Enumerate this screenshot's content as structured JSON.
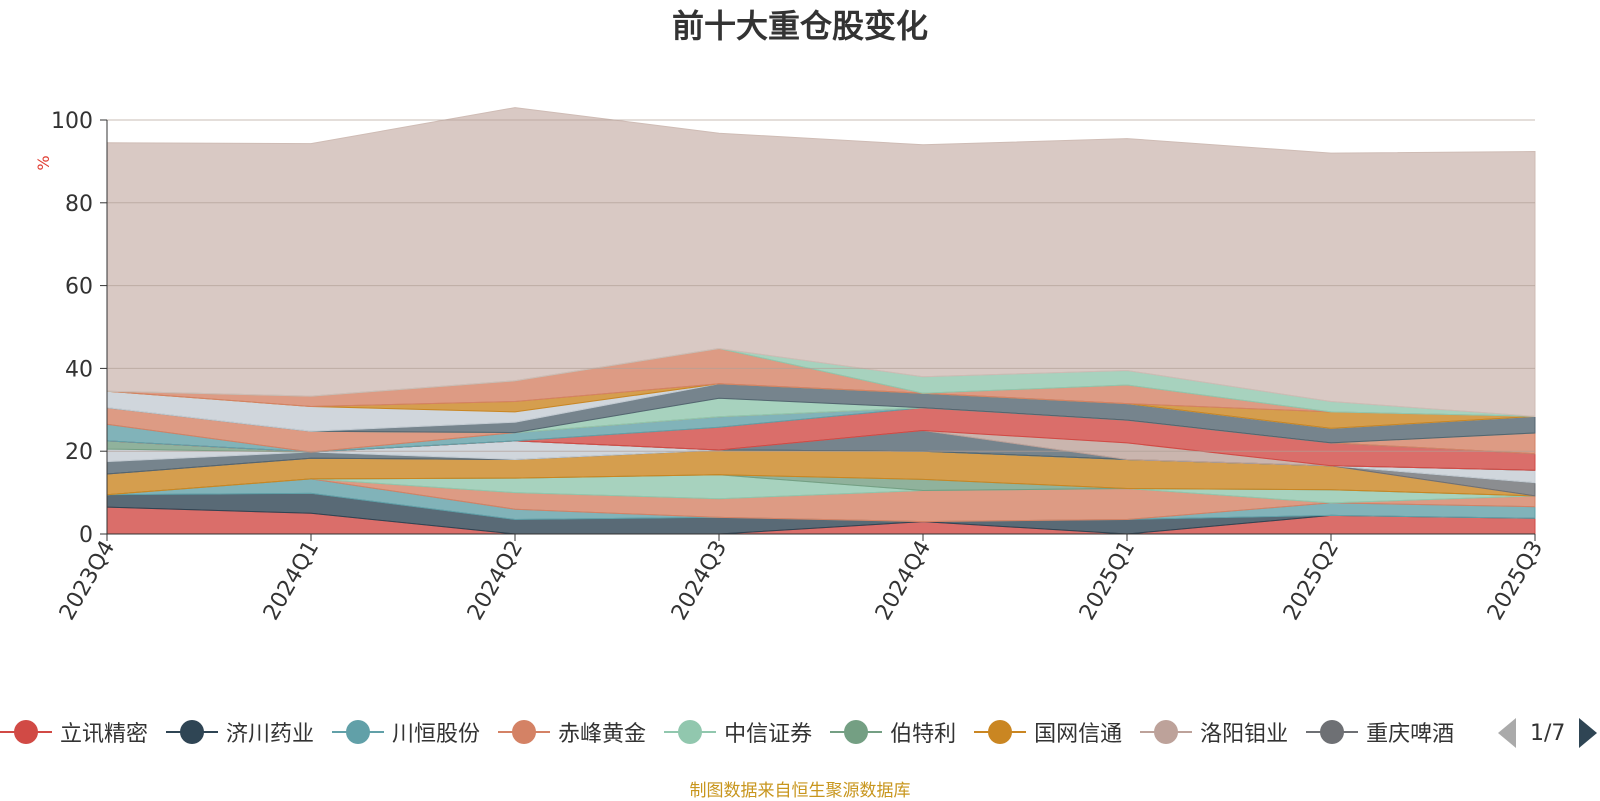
{
  "chart_data": {
    "type": "area",
    "title": "前十大重仓股变化",
    "ylabel": "%",
    "ylim": [
      0,
      100
    ],
    "yticks": [
      0,
      20,
      40,
      60,
      80,
      100
    ],
    "grid": true,
    "stacked": true,
    "legend_position": "bottom",
    "categories": [
      "2023Q4",
      "2024Q1",
      "2024Q2",
      "2024Q3",
      "2024Q4",
      "2025Q1",
      "2025Q2",
      "2025Q3"
    ],
    "series": [
      {
        "name": "立讯精密",
        "color": "#d14a45",
        "values": [
          6.5,
          5.0,
          0.0,
          0.0,
          3.0,
          0.0,
          4.5,
          3.8
        ]
      },
      {
        "name": "济川药业",
        "color": "#2f4554",
        "values": [
          3.0,
          4.8,
          3.5,
          4.0,
          0.0,
          3.5,
          0.0,
          0.0
        ]
      },
      {
        "name": "川恒股份",
        "color": "#61a0a8",
        "values": [
          0.0,
          3.5,
          2.5,
          0.0,
          0.0,
          0.0,
          3.0,
          2.8
        ]
      },
      {
        "name": "赤峰黄金",
        "color": "#d48265",
        "values": [
          0.0,
          0.0,
          4.0,
          4.5,
          7.5,
          7.5,
          0.0,
          2.6
        ]
      },
      {
        "name": "中信证券",
        "color": "#91c7ae",
        "values": [
          0.0,
          0.0,
          3.5,
          5.8,
          0.0,
          0.0,
          3.2,
          0.0
        ]
      },
      {
        "name": "伯特利",
        "color": "#749f83",
        "values": [
          0.0,
          0.0,
          0.0,
          0.0,
          2.7,
          0.0,
          0.0,
          0.0
        ]
      },
      {
        "name": "国网信通",
        "color": "#ca8622",
        "values": [
          5.0,
          5.0,
          4.5,
          6.0,
          6.8,
          7.0,
          5.8,
          0.0
        ]
      },
      {
        "name": "洛阳钼业",
        "color": "#bda29a",
        "values": [
          0.0,
          0.0,
          0.0,
          0.0,
          0.0,
          0.0,
          0.0,
          0.0
        ]
      },
      {
        "name": "重庆啤酒",
        "color": "#6e7074",
        "values": [
          0.0,
          0.0,
          0.0,
          0.0,
          0.0,
          0.0,
          0.0,
          3.2
        ]
      },
      {
        "name": "",
        "color": "#546570",
        "values": [
          3.0,
          1.5,
          0.0,
          0.0,
          0.0,
          0.0,
          0.0,
          0.0
        ]
      },
      {
        "name": "",
        "color": "#c4ccd3",
        "values": [
          3.0,
          0.0,
          4.5,
          0.0,
          0.0,
          0.0,
          0.0,
          3.0
        ]
      },
      {
        "name": "",
        "color": "#749f83",
        "values": [
          2.0,
          0.0,
          0.0,
          0.0,
          0.0,
          0.0,
          0.0,
          0.0
        ]
      },
      {
        "name": "",
        "color": "#546570",
        "values": [
          0.0,
          0.0,
          0.0,
          0.0,
          5.0,
          0.0,
          0.0,
          0.0
        ]
      },
      {
        "name": "",
        "color": "#bda29a",
        "values": [
          0.0,
          0.0,
          0.0,
          0.0,
          0.0,
          4.0,
          0.0,
          0.0
        ]
      },
      {
        "name": "",
        "color": "#d14a45",
        "values": [
          0.0,
          0.0,
          0.0,
          5.5,
          5.5,
          5.5,
          5.5,
          4.0
        ]
      },
      {
        "name": "",
        "color": "#61a0a8",
        "values": [
          4.0,
          0.0,
          2.0,
          2.5,
          0.0,
          0.0,
          0.0,
          0.0
        ]
      },
      {
        "name": "",
        "color": "#d48265",
        "values": [
          4.0,
          5.0,
          0.0,
          0.0,
          0.0,
          0.0,
          0.0,
          5.0
        ]
      },
      {
        "name": "",
        "color": "#91c7ae",
        "values": [
          0.0,
          0.0,
          0.0,
          4.5,
          0.0,
          0.0,
          0.0,
          0.0
        ]
      },
      {
        "name": "",
        "color": "#546570",
        "values": [
          0.0,
          0.0,
          2.5,
          3.5,
          3.5,
          4.0,
          3.5,
          4.0
        ]
      },
      {
        "name": "",
        "color": "#c4ccd3",
        "values": [
          4.0,
          6.0,
          2.5,
          0.0,
          0.0,
          0.0,
          0.0,
          0.0
        ]
      },
      {
        "name": "",
        "color": "#ca8622",
        "values": [
          0.0,
          0.0,
          2.5,
          0.0,
          0.0,
          0.0,
          4.0,
          0.0
        ]
      },
      {
        "name": "",
        "color": "#d48265",
        "values": [
          0.0,
          2.5,
          5.0,
          8.5,
          0.0,
          4.5,
          0.0,
          0.0
        ]
      },
      {
        "name": "",
        "color": "#91c7ae",
        "values": [
          0.0,
          0.0,
          0.0,
          0.0,
          4.0,
          3.5,
          2.5,
          0.0
        ]
      },
      {
        "name": "",
        "color": "#cfbcb5",
        "values": [
          60.0,
          61.0,
          66.0,
          52.0,
          56.0,
          56.0,
          60.0,
          64.0
        ]
      }
    ]
  },
  "legend": {
    "items": [
      {
        "label": "立讯精密",
        "color": "#d14a45"
      },
      {
        "label": "济川药业",
        "color": "#2f4554"
      },
      {
        "label": "川恒股份",
        "color": "#61a0a8"
      },
      {
        "label": "赤峰黄金",
        "color": "#d48265"
      },
      {
        "label": "中信证券",
        "color": "#91c7ae"
      },
      {
        "label": "伯特利",
        "color": "#749f83"
      },
      {
        "label": "国网信通",
        "color": "#ca8622"
      },
      {
        "label": "洛阳钼业",
        "color": "#bda29a"
      },
      {
        "label": "重庆啤酒",
        "color": "#6e7074"
      }
    ],
    "page": "1/7"
  },
  "footer": {
    "source": "制图数据来自恒生聚源数据库"
  }
}
